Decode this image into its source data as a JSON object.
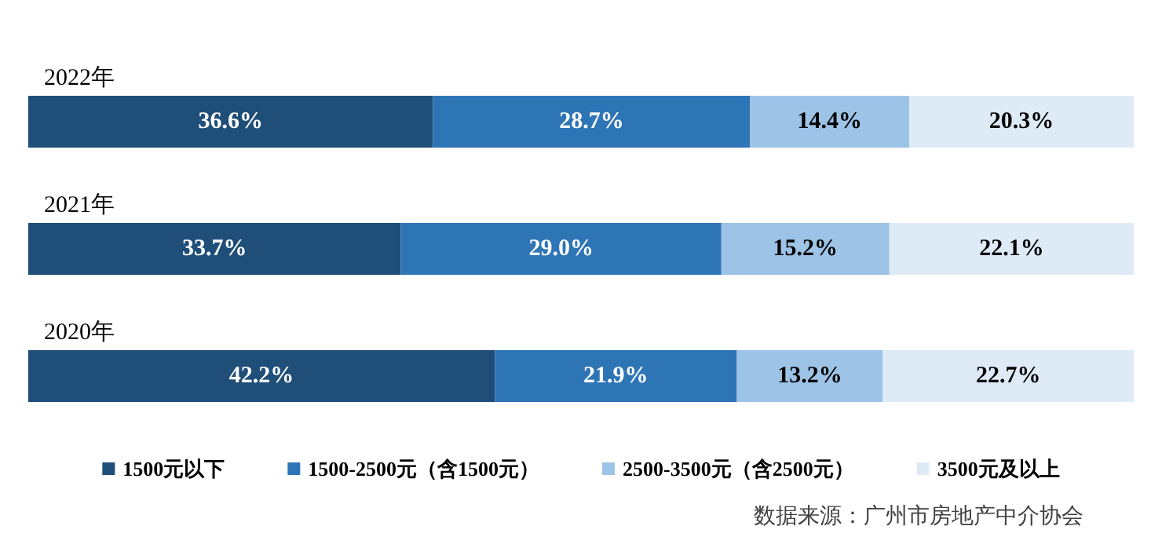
{
  "chart_data": {
    "type": "bar",
    "orientation": "horizontal",
    "stacked": true,
    "categories": [
      "2022年",
      "2021年",
      "2020年"
    ],
    "series": [
      {
        "name": "1500元以下",
        "color": "#1f4e79",
        "values": [
          36.6,
          33.7,
          42.2
        ],
        "value_labels": [
          "36.6%",
          "33.7%",
          "42.2%"
        ]
      },
      {
        "name": "1500-2500元（含1500元）",
        "color": "#2e75b6",
        "values": [
          28.7,
          29.0,
          21.9
        ],
        "value_labels": [
          "28.7%",
          "29.0%",
          "21.9%"
        ]
      },
      {
        "name": "2500-3500元（含2500元）",
        "color": "#9dc3e6",
        "values": [
          14.4,
          15.2,
          13.2
        ],
        "value_labels": [
          "14.4%",
          "15.2%",
          "13.2%"
        ]
      },
      {
        "name": "3500元及以上",
        "color": "#deebf7",
        "values": [
          20.3,
          22.1,
          22.7
        ],
        "value_labels": [
          "20.3%",
          "22.1%",
          "22.7%"
        ]
      }
    ],
    "legend": "bottom",
    "tick_labels": "y",
    "annotations": [
      "数据来源：广州市房地产中介协会"
    ]
  }
}
